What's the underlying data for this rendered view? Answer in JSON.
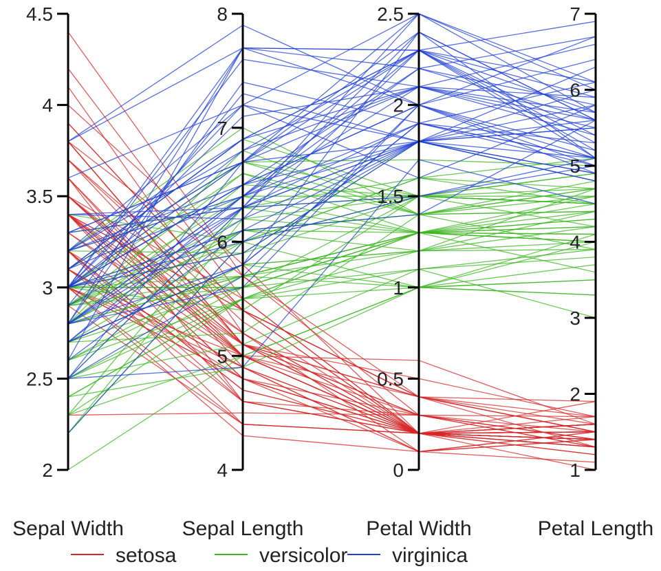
{
  "chart_data": {
    "type": "parallel_coordinates",
    "title": "",
    "grid": false,
    "legend_placement": "bottom",
    "axes": [
      {
        "name": "Sepal Width",
        "range": [
          2,
          4.5
        ],
        "ticks": [
          2,
          2.5,
          3,
          3.5,
          4,
          4.5
        ],
        "tick_labels": [
          "2",
          "2.5",
          "3",
          "3.5",
          "4",
          "4.5"
        ]
      },
      {
        "name": "Sepal Length",
        "range": [
          4,
          8
        ],
        "ticks": [
          4,
          5,
          6,
          7,
          8
        ],
        "tick_labels": [
          "4",
          "5",
          "6",
          "7",
          "8"
        ]
      },
      {
        "name": "Petal Width",
        "range": [
          0,
          2.5
        ],
        "ticks": [
          0,
          0.5,
          1,
          1.5,
          2,
          2.5
        ],
        "tick_labels": [
          "0",
          "0.5",
          "1",
          "1.5",
          "2",
          "2.5"
        ]
      },
      {
        "name": "Petal Length",
        "range": [
          1,
          7
        ],
        "ticks": [
          1,
          2,
          3,
          4,
          5,
          6,
          7
        ],
        "tick_labels": [
          "1",
          "2",
          "3",
          "4",
          "5",
          "6",
          "7"
        ]
      }
    ],
    "series": [
      {
        "name": "setosa",
        "color": "#d62728",
        "values": [
          [
            3.5,
            5.1,
            0.2,
            1.4
          ],
          [
            3.0,
            4.9,
            0.2,
            1.4
          ],
          [
            3.2,
            4.7,
            0.2,
            1.3
          ],
          [
            3.1,
            4.6,
            0.2,
            1.5
          ],
          [
            3.6,
            5.0,
            0.2,
            1.4
          ],
          [
            3.9,
            5.4,
            0.4,
            1.7
          ],
          [
            3.4,
            4.6,
            0.3,
            1.4
          ],
          [
            3.4,
            5.0,
            0.2,
            1.5
          ],
          [
            2.9,
            4.4,
            0.2,
            1.4
          ],
          [
            3.1,
            4.9,
            0.1,
            1.5
          ],
          [
            3.7,
            5.4,
            0.2,
            1.5
          ],
          [
            3.4,
            4.8,
            0.2,
            1.6
          ],
          [
            3.0,
            4.8,
            0.1,
            1.4
          ],
          [
            3.0,
            4.3,
            0.1,
            1.1
          ],
          [
            4.0,
            5.8,
            0.2,
            1.2
          ],
          [
            4.4,
            5.7,
            0.4,
            1.5
          ],
          [
            3.9,
            5.4,
            0.4,
            1.3
          ],
          [
            3.5,
            5.1,
            0.3,
            1.4
          ],
          [
            3.8,
            5.7,
            0.3,
            1.7
          ],
          [
            3.8,
            5.1,
            0.3,
            1.5
          ],
          [
            3.4,
            5.4,
            0.2,
            1.7
          ],
          [
            3.7,
            5.1,
            0.4,
            1.5
          ],
          [
            3.6,
            4.6,
            0.2,
            1.0
          ],
          [
            3.3,
            5.1,
            0.5,
            1.7
          ],
          [
            3.4,
            4.8,
            0.2,
            1.9
          ],
          [
            3.0,
            5.0,
            0.2,
            1.6
          ],
          [
            3.4,
            5.0,
            0.4,
            1.6
          ],
          [
            3.5,
            5.2,
            0.2,
            1.5
          ],
          [
            3.4,
            5.2,
            0.2,
            1.4
          ],
          [
            3.2,
            4.7,
            0.2,
            1.6
          ],
          [
            3.1,
            4.8,
            0.2,
            1.6
          ],
          [
            3.4,
            5.4,
            0.4,
            1.5
          ],
          [
            4.1,
            5.2,
            0.1,
            1.5
          ],
          [
            4.2,
            5.5,
            0.2,
            1.4
          ],
          [
            3.1,
            4.9,
            0.2,
            1.5
          ],
          [
            3.2,
            5.0,
            0.2,
            1.2
          ],
          [
            3.5,
            5.5,
            0.2,
            1.3
          ],
          [
            3.6,
            4.9,
            0.1,
            1.4
          ],
          [
            3.0,
            4.4,
            0.2,
            1.3
          ],
          [
            3.4,
            5.1,
            0.2,
            1.5
          ],
          [
            3.5,
            5.0,
            0.3,
            1.3
          ],
          [
            2.3,
            4.5,
            0.3,
            1.3
          ],
          [
            3.2,
            4.4,
            0.2,
            1.3
          ],
          [
            3.5,
            5.0,
            0.6,
            1.6
          ],
          [
            3.8,
            5.1,
            0.4,
            1.9
          ],
          [
            3.0,
            4.8,
            0.3,
            1.4
          ],
          [
            3.8,
            5.1,
            0.2,
            1.6
          ],
          [
            3.2,
            4.6,
            0.2,
            1.4
          ],
          [
            3.7,
            5.3,
            0.2,
            1.5
          ],
          [
            3.3,
            5.0,
            0.2,
            1.4
          ]
        ]
      },
      {
        "name": "versicolor",
        "color": "#3cb521",
        "values": [
          [
            3.2,
            7.0,
            1.4,
            4.7
          ],
          [
            3.2,
            6.4,
            1.5,
            4.5
          ],
          [
            3.1,
            6.9,
            1.5,
            4.9
          ],
          [
            2.3,
            5.5,
            1.3,
            4.0
          ],
          [
            2.8,
            6.5,
            1.5,
            4.6
          ],
          [
            2.8,
            5.7,
            1.3,
            4.5
          ],
          [
            3.3,
            6.3,
            1.6,
            4.7
          ],
          [
            2.4,
            4.9,
            1.0,
            3.3
          ],
          [
            2.9,
            6.6,
            1.3,
            4.6
          ],
          [
            2.7,
            5.2,
            1.4,
            3.9
          ],
          [
            2.0,
            5.0,
            1.0,
            3.5
          ],
          [
            3.0,
            5.9,
            1.5,
            4.2
          ],
          [
            2.2,
            6.0,
            1.0,
            4.0
          ],
          [
            2.9,
            6.1,
            1.4,
            4.7
          ],
          [
            2.9,
            5.6,
            1.3,
            3.6
          ],
          [
            3.1,
            6.7,
            1.4,
            4.4
          ],
          [
            3.0,
            5.6,
            1.5,
            4.5
          ],
          [
            2.7,
            5.8,
            1.0,
            4.1
          ],
          [
            2.2,
            6.2,
            1.5,
            4.5
          ],
          [
            2.5,
            5.6,
            1.1,
            3.9
          ],
          [
            3.2,
            5.9,
            1.8,
            4.8
          ],
          [
            2.8,
            6.1,
            1.3,
            4.0
          ],
          [
            2.5,
            6.3,
            1.5,
            4.9
          ],
          [
            2.8,
            6.1,
            1.2,
            4.7
          ],
          [
            2.9,
            6.4,
            1.3,
            4.3
          ],
          [
            3.0,
            6.6,
            1.4,
            4.4
          ],
          [
            2.8,
            6.8,
            1.4,
            4.8
          ],
          [
            3.0,
            6.7,
            1.7,
            5.0
          ],
          [
            2.9,
            6.0,
            1.5,
            4.5
          ],
          [
            2.6,
            5.7,
            1.0,
            3.5
          ],
          [
            2.4,
            5.5,
            1.1,
            3.8
          ],
          [
            2.4,
            5.5,
            1.0,
            3.7
          ],
          [
            2.7,
            5.8,
            1.2,
            3.9
          ],
          [
            2.7,
            6.0,
            1.6,
            5.1
          ],
          [
            3.0,
            5.4,
            1.5,
            4.5
          ],
          [
            3.4,
            6.0,
            1.6,
            4.5
          ],
          [
            3.1,
            6.7,
            1.5,
            4.7
          ],
          [
            2.3,
            6.3,
            1.3,
            4.4
          ],
          [
            3.0,
            5.6,
            1.3,
            4.1
          ],
          [
            2.5,
            5.5,
            1.3,
            4.0
          ],
          [
            2.6,
            5.5,
            1.2,
            4.4
          ],
          [
            3.0,
            6.1,
            1.4,
            4.6
          ],
          [
            2.6,
            5.8,
            1.2,
            4.0
          ],
          [
            2.3,
            5.0,
            1.0,
            3.3
          ],
          [
            2.7,
            5.6,
            1.3,
            4.2
          ],
          [
            3.0,
            5.7,
            1.2,
            4.2
          ],
          [
            2.9,
            5.7,
            1.3,
            4.2
          ],
          [
            2.9,
            6.2,
            1.3,
            4.3
          ],
          [
            2.5,
            5.1,
            1.1,
            3.0
          ],
          [
            2.8,
            5.7,
            1.3,
            4.1
          ]
        ]
      },
      {
        "name": "virginica",
        "color": "#1f3fd6",
        "values": [
          [
            3.3,
            6.3,
            2.5,
            6.0
          ],
          [
            2.7,
            5.8,
            1.9,
            5.1
          ],
          [
            3.0,
            7.1,
            2.1,
            5.9
          ],
          [
            2.9,
            6.3,
            1.8,
            5.6
          ],
          [
            3.0,
            6.5,
            2.2,
            5.8
          ],
          [
            3.0,
            7.6,
            2.1,
            6.6
          ],
          [
            2.5,
            4.9,
            1.7,
            4.5
          ],
          [
            2.9,
            7.3,
            1.8,
            6.3
          ],
          [
            2.5,
            6.7,
            1.8,
            5.8
          ],
          [
            3.6,
            7.2,
            2.5,
            6.1
          ],
          [
            3.2,
            6.5,
            2.0,
            5.1
          ],
          [
            2.7,
            6.4,
            1.9,
            5.3
          ],
          [
            3.0,
            6.8,
            2.1,
            5.5
          ],
          [
            2.5,
            5.7,
            2.0,
            5.0
          ],
          [
            2.8,
            5.8,
            2.4,
            5.1
          ],
          [
            3.2,
            6.4,
            2.3,
            5.3
          ],
          [
            3.0,
            6.5,
            1.8,
            5.5
          ],
          [
            3.8,
            7.7,
            2.2,
            6.7
          ],
          [
            2.6,
            7.7,
            2.3,
            6.9
          ],
          [
            2.2,
            6.0,
            1.5,
            5.0
          ],
          [
            3.2,
            6.9,
            2.3,
            5.7
          ],
          [
            2.8,
            5.6,
            2.0,
            4.9
          ],
          [
            2.8,
            7.7,
            2.0,
            6.7
          ],
          [
            2.7,
            6.3,
            1.8,
            4.9
          ],
          [
            3.3,
            6.7,
            2.1,
            5.7
          ],
          [
            3.2,
            7.2,
            1.8,
            6.0
          ],
          [
            2.8,
            6.2,
            1.8,
            4.8
          ],
          [
            3.0,
            6.1,
            1.8,
            4.9
          ],
          [
            2.8,
            6.4,
            2.1,
            5.6
          ],
          [
            3.0,
            7.2,
            1.6,
            5.8
          ],
          [
            2.8,
            7.4,
            1.9,
            6.1
          ],
          [
            3.8,
            7.9,
            2.0,
            6.4
          ],
          [
            2.8,
            6.4,
            2.2,
            5.6
          ],
          [
            2.8,
            6.3,
            1.5,
            5.1
          ],
          [
            2.6,
            6.1,
            1.4,
            5.6
          ],
          [
            3.0,
            7.7,
            2.3,
            6.1
          ],
          [
            3.4,
            6.3,
            2.4,
            5.6
          ],
          [
            3.1,
            6.4,
            1.8,
            5.5
          ],
          [
            3.0,
            6.0,
            1.8,
            4.8
          ],
          [
            3.1,
            6.9,
            2.1,
            5.4
          ],
          [
            3.1,
            6.7,
            2.4,
            5.6
          ],
          [
            3.1,
            6.9,
            2.3,
            5.1
          ],
          [
            2.7,
            5.8,
            1.9,
            5.1
          ],
          [
            3.2,
            6.8,
            2.3,
            5.9
          ],
          [
            3.3,
            6.7,
            2.5,
            5.7
          ],
          [
            3.0,
            6.7,
            2.3,
            5.2
          ],
          [
            2.5,
            6.3,
            1.9,
            5.0
          ],
          [
            3.0,
            6.5,
            2.0,
            5.2
          ],
          [
            3.4,
            6.2,
            2.3,
            5.4
          ],
          [
            3.0,
            5.9,
            1.8,
            5.1
          ]
        ]
      }
    ]
  }
}
